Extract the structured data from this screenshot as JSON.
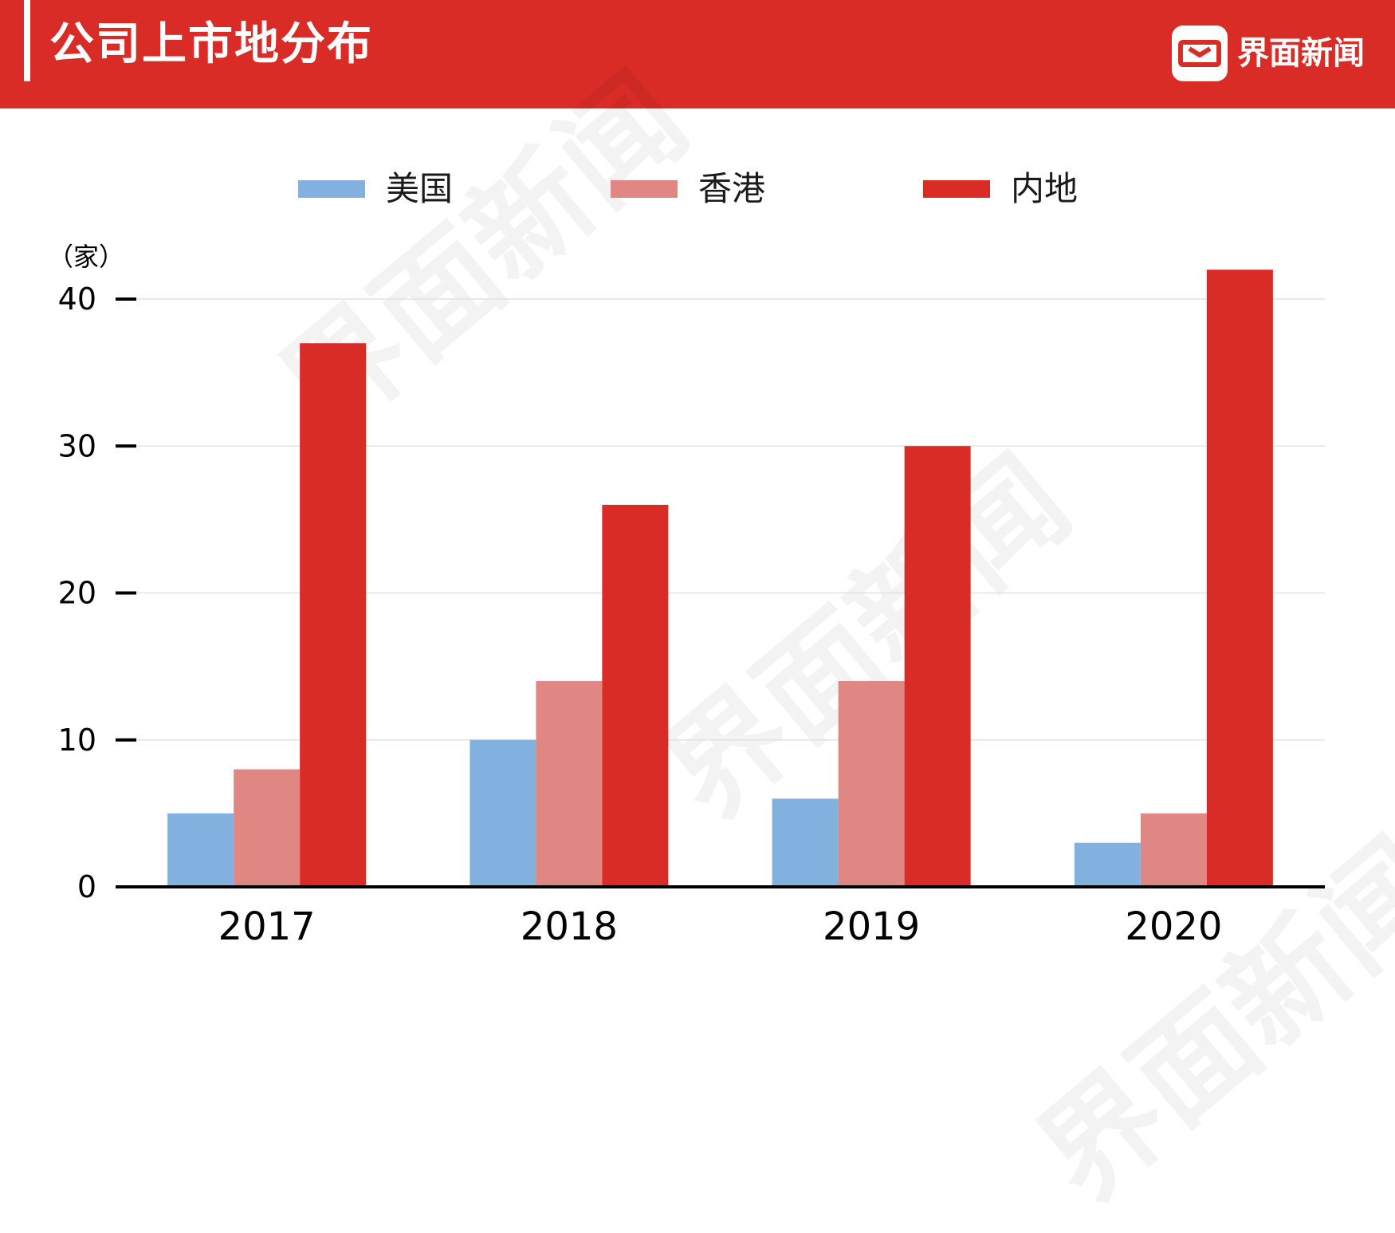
{
  "header": {
    "title": "公司上市地分布",
    "brand": "界面新闻",
    "accent_color": "#d92c27",
    "logo_icon": "jiemian-logo-icon"
  },
  "watermark_text": "界面新闻",
  "chart_data": {
    "type": "bar",
    "title": "公司上市地分布",
    "unit_label": "（家）",
    "categories": [
      "2017",
      "2018",
      "2019",
      "2020"
    ],
    "series": [
      {
        "name": "美国",
        "color": "#82b1e0",
        "values": [
          5,
          10,
          6,
          3
        ]
      },
      {
        "name": "香港",
        "color": "#e08783",
        "values": [
          8,
          14,
          14,
          5
        ]
      },
      {
        "name": "内地",
        "color": "#d92c27",
        "values": [
          37,
          26,
          30,
          42
        ]
      }
    ],
    "yticks": [
      "0",
      "10",
      "20",
      "30",
      "40"
    ],
    "ylim": [
      0,
      44
    ],
    "grid": true,
    "legend_position": "top"
  }
}
